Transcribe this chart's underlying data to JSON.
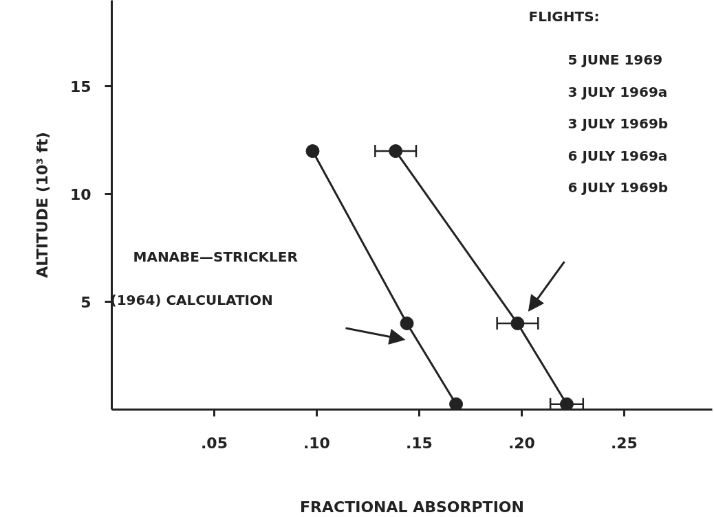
{
  "chart_data": {
    "type": "line",
    "xlabel": "FRACTIONAL ABSORPTION",
    "ylabel": "ALTITUDE (10³ ft)",
    "xlim": [
      0,
      0.293
    ],
    "ylim": [
      0,
      19
    ],
    "xticks": [
      {
        "value": 0.05,
        "label": ".05"
      },
      {
        "value": 0.1,
        "label": ".10"
      },
      {
        "value": 0.15,
        "label": ".15"
      },
      {
        "value": 0.2,
        "label": ".20"
      },
      {
        "value": 0.25,
        "label": ".25"
      }
    ],
    "yticks": [
      5,
      10,
      15
    ],
    "marker": "circle",
    "line_style": "solid",
    "series": [
      {
        "color": "#222222",
        "x": [
          0.098,
          0.144,
          0.168
        ],
        "values": [
          12,
          4,
          0.25
        ]
      },
      {
        "color": "#222222",
        "x": [
          0.1385,
          0.198,
          0.222
        ],
        "values": [
          12,
          4,
          0.25
        ],
        "xerrors": [
          0.01,
          0.01,
          0.008
        ]
      }
    ],
    "annotations": [
      "FLIGHTS:",
      "5 JUNE 1969",
      "3 JULY 1969a",
      "3 JULY 1969b",
      "6 JULY 1969a",
      "6 JULY 1969b",
      "MANABE—STRICKLER",
      "(1964) CALCULATION"
    ]
  }
}
